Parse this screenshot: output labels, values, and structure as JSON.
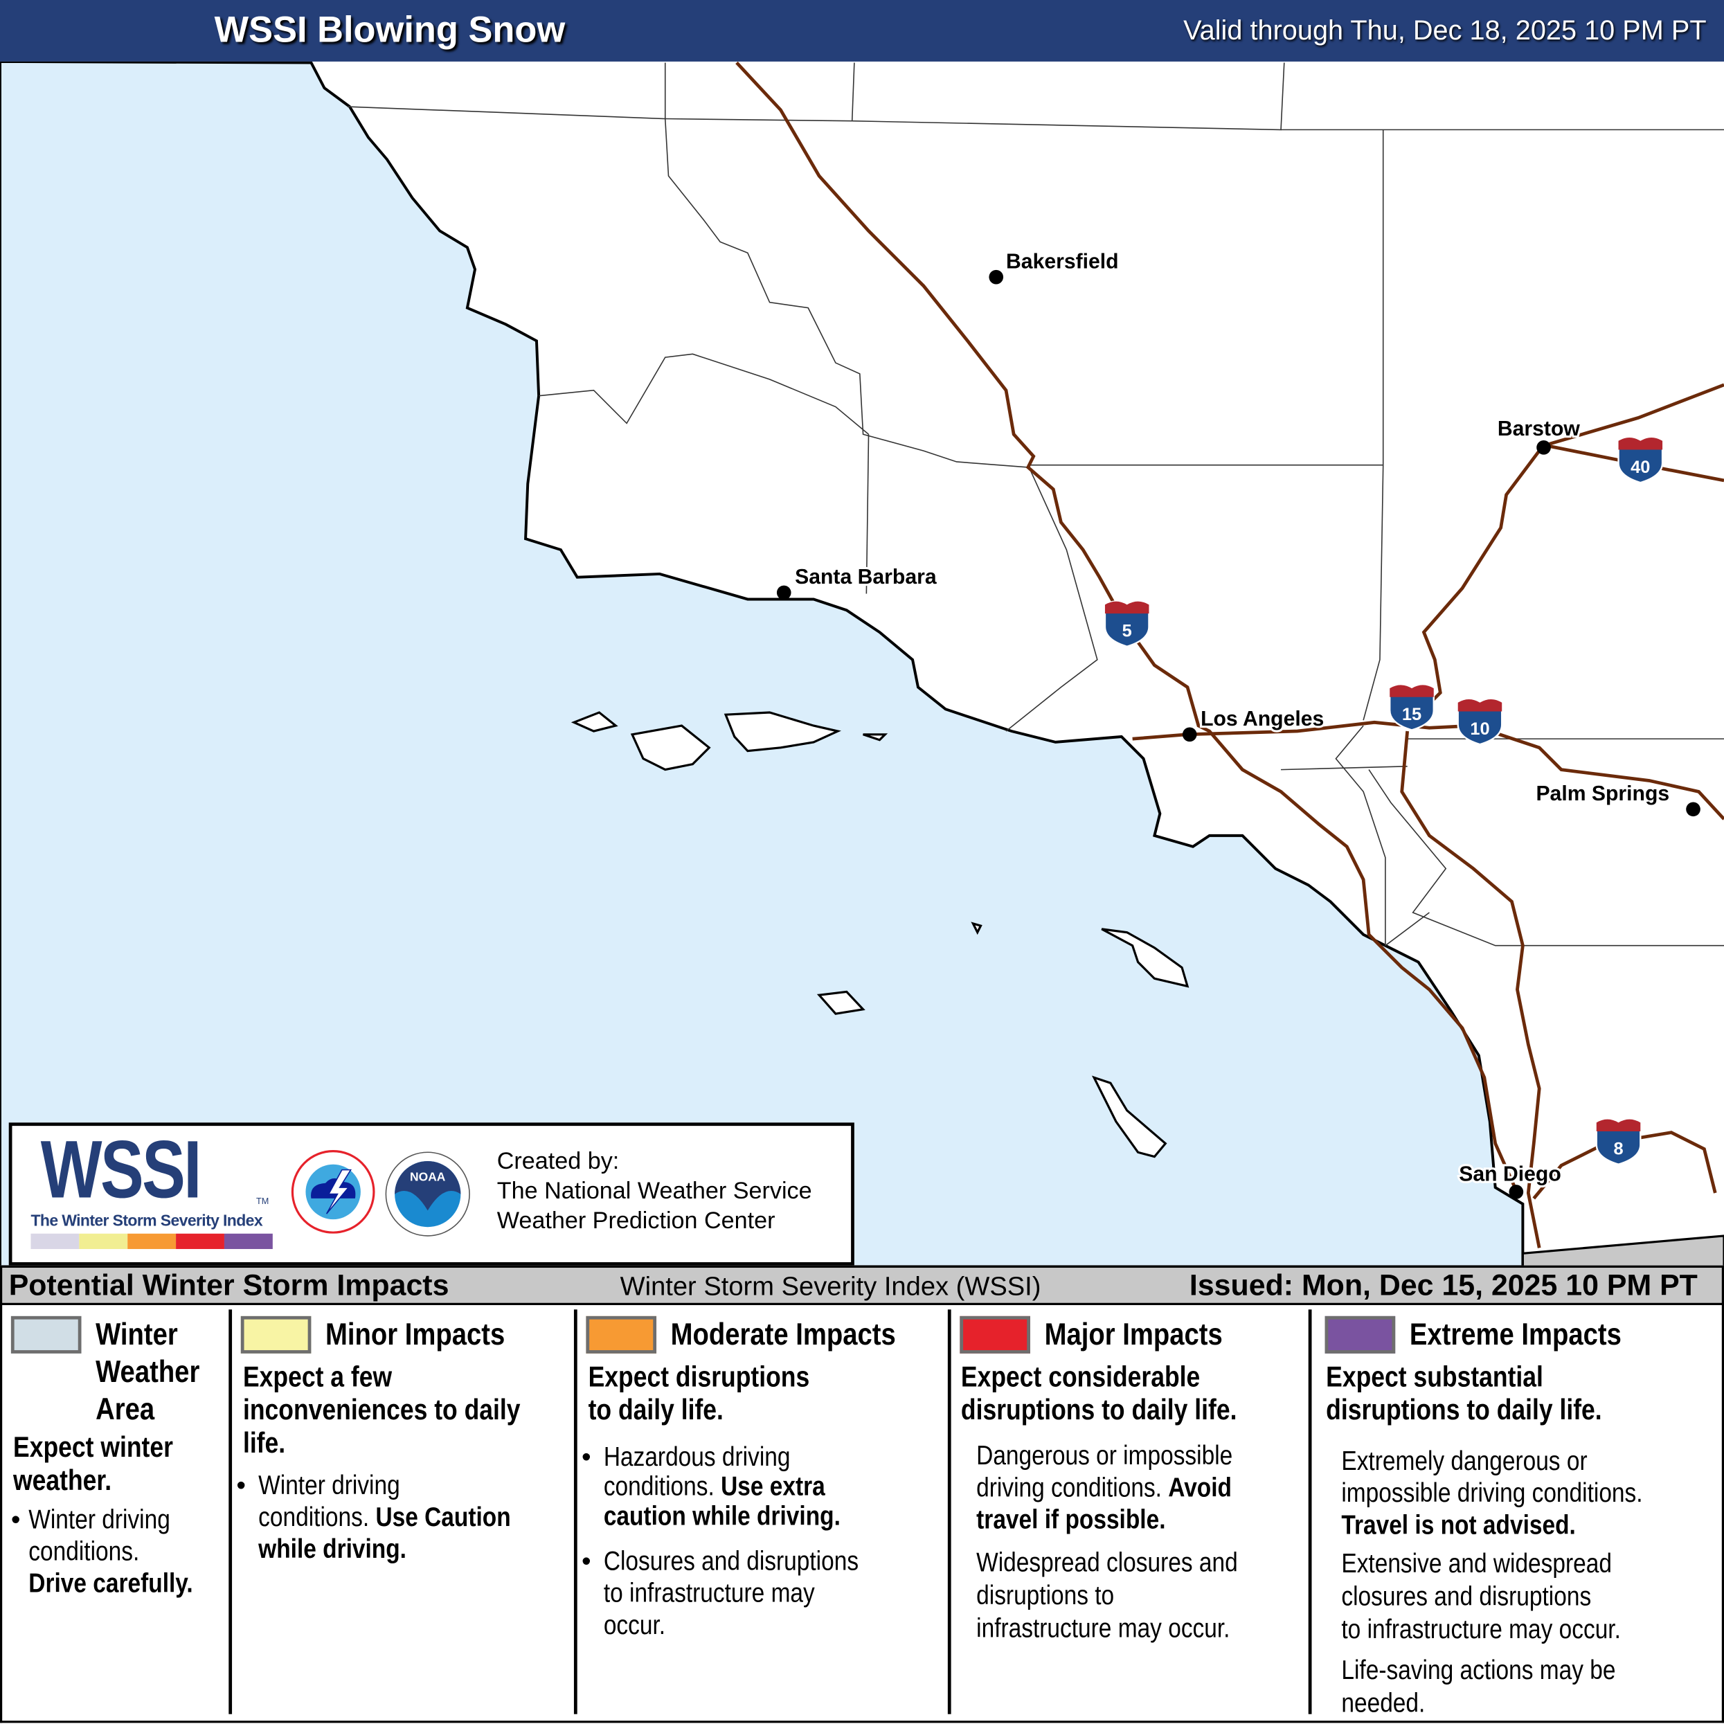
{
  "header": {
    "title": "WSSI Blowing Snow",
    "valid": "Valid through Thu, Dec 18, 2025 10 PM PT"
  },
  "colors": {
    "header": "#253f78",
    "ocean": "#dbeefb",
    "road": "#6b2a0a",
    "winter": "#d1dee6",
    "minor": "#f8f4a4",
    "moderate": "#f79a33",
    "major": "#e6222b",
    "extreme": "#7a53a0"
  },
  "map": {
    "cities": [
      {
        "name": "Bakersfield"
      },
      {
        "name": "Santa Barbara"
      },
      {
        "name": "Los Angeles"
      },
      {
        "name": "Barstow"
      },
      {
        "name": "Palm Springs"
      },
      {
        "name": "San Diego"
      }
    ],
    "interstates": [
      "5",
      "15",
      "10",
      "40",
      "8"
    ]
  },
  "logo": {
    "wssi": "WSSI",
    "tm": "TM",
    "subtitle": "The Winter Storm Severity Index",
    "nws": "NATIONAL WEATHER SERVICE",
    "noaa": "NOAA",
    "created_by": "Created by:",
    "org1": "The National Weather Service",
    "org2": "Weather Prediction Center"
  },
  "legend_bar": {
    "left": "Potential Winter Storm Impacts",
    "mid": "Winter Storm Severity Index (WSSI)",
    "right": "Issued: Mon, Dec 15, 2025 10 PM PT"
  },
  "categories": [
    {
      "title": "Winter Weather Area",
      "title_lines": [
        "Winter",
        "Weather",
        "Area"
      ],
      "lead": "Expect winter weather.",
      "lead_lines": [
        "Expect winter",
        "weather."
      ],
      "bullet_plain_lines": [
        "Winter driving",
        "conditions."
      ],
      "bullet_bold": "Drive carefully."
    },
    {
      "title": "Minor Impacts",
      "lead_lines": [
        "Expect a few",
        "inconveniences to daily",
        "life."
      ],
      "b1_line1": "Winter driving",
      "b1_plain": "conditions.",
      "b1_bold1": "Use Caution",
      "b1_bold2": "while driving."
    },
    {
      "title": "Moderate Impacts",
      "lead_lines": [
        "Expect disruptions",
        "to daily life."
      ],
      "b1_line1": "Hazardous driving",
      "b1_plain": "conditions.",
      "b1_bold1": "Use extra",
      "b1_bold2": "caution while driving.",
      "b2_lines": [
        "Closures and disruptions",
        "to infrastructure may",
        "occur."
      ]
    },
    {
      "title": "Major Impacts",
      "lead_lines": [
        "Expect considerable",
        "disruptions to daily life."
      ],
      "p1_line1": "Dangerous or impossible",
      "p1_plain": "driving conditions.",
      "p1_bold1": "Avoid",
      "p1_bold2": "travel if possible.",
      "p2_lines": [
        "Widespread closures and",
        "disruptions to",
        "infrastructure may occur."
      ]
    },
    {
      "title": "Extreme Impacts",
      "lead_lines": [
        "Expect substantial",
        "disruptions to daily life."
      ],
      "p1_lines": [
        "Extremely dangerous or",
        "impossible driving conditions."
      ],
      "p1_bold": "Travel is not advised.",
      "p2_lines": [
        "Extensive and widespread",
        "closures and disruptions",
        "to infrastructure may occur."
      ],
      "p3_lines": [
        "Life-saving actions may be",
        "needed."
      ]
    }
  ]
}
